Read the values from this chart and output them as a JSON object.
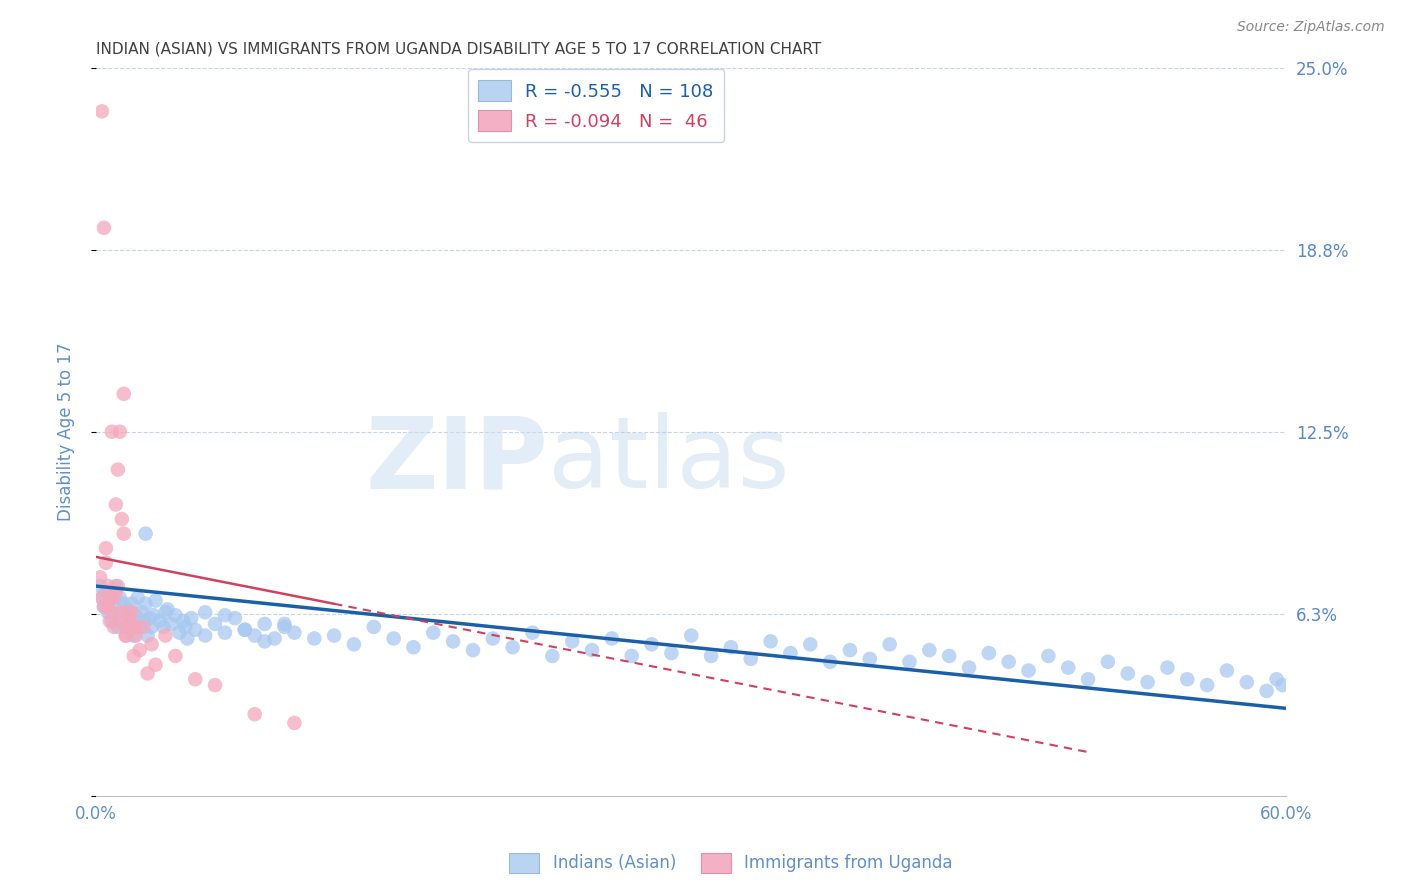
{
  "title": "INDIAN (ASIAN) VS IMMIGRANTS FROM UGANDA DISABILITY AGE 5 TO 17 CORRELATION CHART",
  "source": "Source: ZipAtlas.com",
  "ylabel": "Disability Age 5 to 17",
  "xlim": [
    0.0,
    0.6
  ],
  "ylim": [
    0.0,
    0.25
  ],
  "yticks": [
    0.0,
    0.0625,
    0.125,
    0.1875,
    0.25
  ],
  "ytick_labels": [
    "",
    "6.3%",
    "12.5%",
    "18.8%",
    "25.0%"
  ],
  "xticks": [
    0.0,
    0.1,
    0.2,
    0.3,
    0.4,
    0.5,
    0.6
  ],
  "xtick_labels": [
    "0.0%",
    "",
    "",
    "",
    "",
    "",
    "60.0%"
  ],
  "watermark_zip": "ZIP",
  "watermark_atlas": "atlas",
  "legend_label_blue": "R = -0.555   N = 108",
  "legend_label_pink": "R = -0.094   N =  46",
  "blue_color": "#a8c8f0",
  "pink_color": "#f4a8bc",
  "trend_blue_color": "#1a5fa8",
  "trend_pink_color": "#d04060",
  "background_color": "#ffffff",
  "grid_color": "#c8d4e8",
  "title_color": "#404040",
  "axis_color": "#6090c8",
  "right_tick_color": "#5588cc",
  "source_color": "#888888",
  "blue_scatter_x": [
    0.002,
    0.003,
    0.004,
    0.005,
    0.006,
    0.007,
    0.008,
    0.009,
    0.01,
    0.011,
    0.012,
    0.013,
    0.014,
    0.015,
    0.016,
    0.017,
    0.018,
    0.019,
    0.02,
    0.021,
    0.022,
    0.023,
    0.024,
    0.025,
    0.026,
    0.027,
    0.028,
    0.029,
    0.03,
    0.032,
    0.034,
    0.036,
    0.038,
    0.04,
    0.042,
    0.044,
    0.046,
    0.048,
    0.05,
    0.055,
    0.06,
    0.065,
    0.07,
    0.075,
    0.08,
    0.085,
    0.09,
    0.095,
    0.1,
    0.11,
    0.12,
    0.13,
    0.14,
    0.15,
    0.16,
    0.17,
    0.18,
    0.19,
    0.2,
    0.21,
    0.22,
    0.23,
    0.24,
    0.25,
    0.26,
    0.27,
    0.28,
    0.29,
    0.3,
    0.31,
    0.32,
    0.33,
    0.34,
    0.35,
    0.36,
    0.37,
    0.38,
    0.39,
    0.4,
    0.41,
    0.42,
    0.43,
    0.44,
    0.45,
    0.46,
    0.47,
    0.48,
    0.49,
    0.5,
    0.51,
    0.52,
    0.53,
    0.54,
    0.55,
    0.56,
    0.57,
    0.58,
    0.59,
    0.595,
    0.598,
    0.025,
    0.035,
    0.045,
    0.055,
    0.065,
    0.075,
    0.085,
    0.095
  ],
  "blue_scatter_y": [
    0.072,
    0.068,
    0.065,
    0.07,
    0.063,
    0.068,
    0.06,
    0.065,
    0.072,
    0.058,
    0.068,
    0.062,
    0.066,
    0.058,
    0.064,
    0.06,
    0.066,
    0.055,
    0.062,
    0.068,
    0.058,
    0.063,
    0.06,
    0.066,
    0.055,
    0.061,
    0.058,
    0.062,
    0.067,
    0.06,
    0.058,
    0.064,
    0.059,
    0.062,
    0.056,
    0.06,
    0.054,
    0.061,
    0.057,
    0.063,
    0.059,
    0.056,
    0.061,
    0.057,
    0.055,
    0.059,
    0.054,
    0.058,
    0.056,
    0.054,
    0.055,
    0.052,
    0.058,
    0.054,
    0.051,
    0.056,
    0.053,
    0.05,
    0.054,
    0.051,
    0.056,
    0.048,
    0.053,
    0.05,
    0.054,
    0.048,
    0.052,
    0.049,
    0.055,
    0.048,
    0.051,
    0.047,
    0.053,
    0.049,
    0.052,
    0.046,
    0.05,
    0.047,
    0.052,
    0.046,
    0.05,
    0.048,
    0.044,
    0.049,
    0.046,
    0.043,
    0.048,
    0.044,
    0.04,
    0.046,
    0.042,
    0.039,
    0.044,
    0.04,
    0.038,
    0.043,
    0.039,
    0.036,
    0.04,
    0.038,
    0.09,
    0.063,
    0.058,
    0.055,
    0.062,
    0.057,
    0.053,
    0.059
  ],
  "pink_scatter_x": [
    0.002,
    0.003,
    0.004,
    0.005,
    0.006,
    0.007,
    0.008,
    0.009,
    0.01,
    0.011,
    0.012,
    0.013,
    0.014,
    0.015,
    0.016,
    0.017,
    0.018,
    0.019,
    0.02,
    0.022,
    0.024,
    0.026,
    0.028,
    0.03,
    0.035,
    0.04,
    0.05,
    0.06,
    0.08,
    0.1,
    0.005,
    0.007,
    0.009,
    0.011,
    0.013,
    0.015,
    0.003,
    0.004,
    0.006,
    0.008,
    0.01,
    0.012,
    0.014,
    0.016,
    0.018,
    0.02
  ],
  "pink_scatter_y": [
    0.075,
    0.068,
    0.065,
    0.08,
    0.072,
    0.068,
    0.063,
    0.058,
    0.1,
    0.112,
    0.06,
    0.095,
    0.09,
    0.055,
    0.063,
    0.06,
    0.058,
    0.048,
    0.055,
    0.05,
    0.058,
    0.042,
    0.052,
    0.045,
    0.055,
    0.048,
    0.04,
    0.038,
    0.028,
    0.025,
    0.085,
    0.06,
    0.068,
    0.072,
    0.063,
    0.055,
    0.235,
    0.195,
    0.065,
    0.125,
    0.07,
    0.125,
    0.138,
    0.058,
    0.063,
    0.058
  ],
  "trend_blue_x_start": 0.0,
  "trend_blue_x_end": 0.6,
  "trend_blue_y_start": 0.072,
  "trend_blue_y_end": 0.03,
  "trend_pink_x_start": 0.0,
  "trend_pink_x_end": 0.5,
  "trend_pink_y_start": 0.082,
  "trend_pink_y_end": 0.015
}
